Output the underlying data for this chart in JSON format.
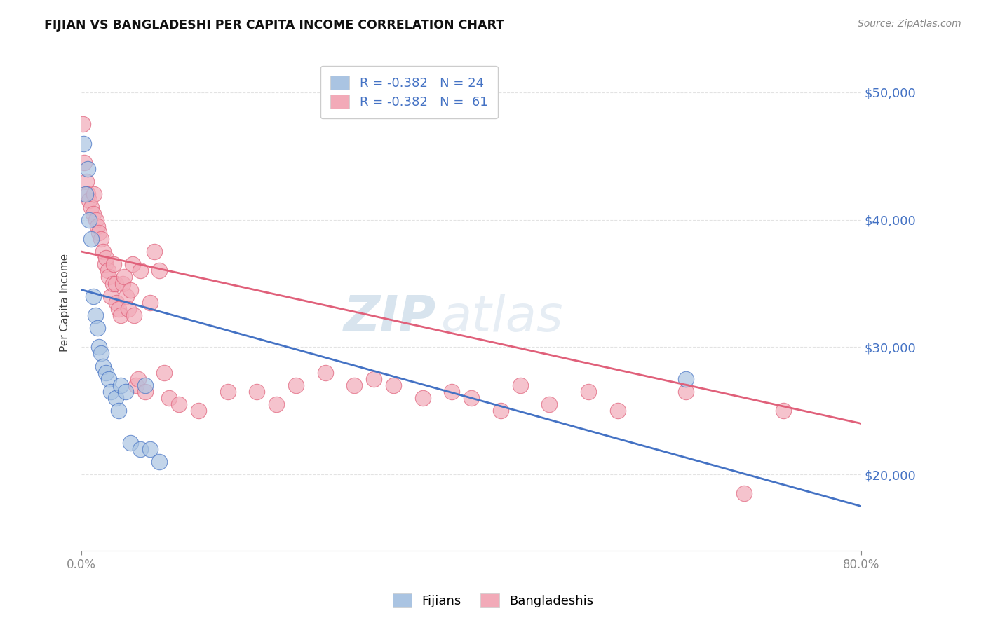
{
  "title": "FIJIAN VS BANGLADESHI PER CAPITA INCOME CORRELATION CHART",
  "source": "Source: ZipAtlas.com",
  "ylabel": "Per Capita Income",
  "x_min": 0.0,
  "x_max": 0.8,
  "y_min": 14000,
  "y_max": 53000,
  "y_ticks": [
    20000,
    30000,
    40000,
    50000
  ],
  "y_tick_labels": [
    "$20,000",
    "$30,000",
    "$40,000",
    "$50,000"
  ],
  "legend_blue_label": "R = -0.382   N = 24",
  "legend_pink_label": "R = -0.382   N =  61",
  "fijian_color": "#aac4e2",
  "bangladeshi_color": "#f2aab8",
  "line_blue": "#4472c4",
  "line_pink": "#e0607a",
  "fijian_x": [
    0.002,
    0.004,
    0.006,
    0.008,
    0.01,
    0.012,
    0.014,
    0.016,
    0.018,
    0.02,
    0.022,
    0.025,
    0.028,
    0.03,
    0.035,
    0.038,
    0.04,
    0.045,
    0.05,
    0.06,
    0.065,
    0.07,
    0.08,
    0.62
  ],
  "fijian_y": [
    46000,
    42000,
    44000,
    40000,
    38500,
    34000,
    32500,
    31500,
    30000,
    29500,
    28500,
    28000,
    27500,
    26500,
    26000,
    25000,
    27000,
    26500,
    22500,
    22000,
    27000,
    22000,
    21000,
    27500
  ],
  "bangladeshi_x": [
    0.001,
    0.003,
    0.005,
    0.006,
    0.008,
    0.01,
    0.012,
    0.013,
    0.015,
    0.016,
    0.018,
    0.02,
    0.022,
    0.024,
    0.025,
    0.027,
    0.028,
    0.03,
    0.032,
    0.033,
    0.035,
    0.036,
    0.038,
    0.04,
    0.042,
    0.044,
    0.046,
    0.048,
    0.05,
    0.052,
    0.054,
    0.056,
    0.058,
    0.06,
    0.065,
    0.07,
    0.075,
    0.08,
    0.085,
    0.09,
    0.1,
    0.12,
    0.15,
    0.18,
    0.2,
    0.22,
    0.25,
    0.28,
    0.3,
    0.32,
    0.35,
    0.38,
    0.4,
    0.43,
    0.45,
    0.48,
    0.52,
    0.55,
    0.62,
    0.68,
    0.72
  ],
  "bangladeshi_y": [
    47500,
    44500,
    43000,
    42000,
    41500,
    41000,
    40500,
    42000,
    40000,
    39500,
    39000,
    38500,
    37500,
    36500,
    37000,
    36000,
    35500,
    34000,
    35000,
    36500,
    35000,
    33500,
    33000,
    32500,
    35000,
    35500,
    34000,
    33000,
    34500,
    36500,
    32500,
    27000,
    27500,
    36000,
    26500,
    33500,
    37500,
    36000,
    28000,
    26000,
    25500,
    25000,
    26500,
    26500,
    25500,
    27000,
    28000,
    27000,
    27500,
    27000,
    26000,
    26500,
    26000,
    25000,
    27000,
    25500,
    26500,
    25000,
    26500,
    18500,
    25000
  ],
  "blue_line_x": [
    0.0,
    0.8
  ],
  "blue_line_y": [
    34500,
    17500
  ],
  "pink_line_x": [
    0.0,
    0.8
  ],
  "pink_line_y": [
    37500,
    24000
  ],
  "watermark_zip": "ZIP",
  "watermark_atlas": "atlas",
  "background_color": "#ffffff",
  "grid_color": "#dddddd"
}
